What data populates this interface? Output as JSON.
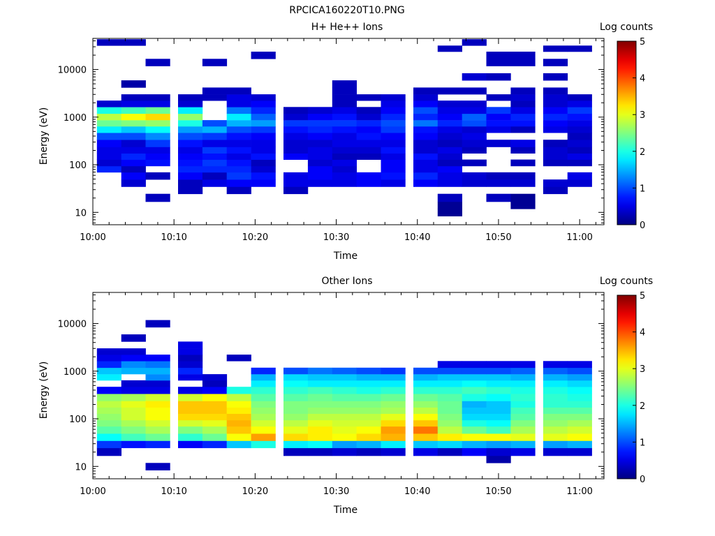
{
  "figure": {
    "title": "RPCICA160220T10.PNG"
  },
  "chart_data": [
    {
      "type": "heatmap",
      "title": "H+ He++ Ions",
      "xlabel": "Time",
      "ylabel": "Energy (eV)",
      "y_scale": "log",
      "ylim": [
        5.5,
        45000
      ],
      "xlim": [
        "10:00",
        "11:03"
      ],
      "x_ticks": [
        "10:00",
        "10:10",
        "10:20",
        "10:30",
        "10:40",
        "10:50",
        "11:00"
      ],
      "y_ticks": [
        "10",
        "100",
        "1000",
        "10000"
      ],
      "colorbar": {
        "label": "Log counts",
        "range": [
          0,
          5
        ],
        "ticks": [
          "0",
          "1",
          "2",
          "3",
          "4",
          "5"
        ]
      },
      "x_bins": [
        "10:02",
        "10:05",
        "10:08",
        "10:12",
        "10:15",
        "10:18",
        "10:21",
        "10:25",
        "10:28",
        "10:31",
        "10:34",
        "10:37",
        "10:41",
        "10:44",
        "10:47",
        "10:50",
        "10:53",
        "10:57",
        "11:00"
      ],
      "energy_bins": [
        10,
        14,
        20,
        30,
        40,
        60,
        80,
        110,
        150,
        200,
        280,
        400,
        550,
        750,
        1000,
        1400,
        1900,
        2600,
        3500,
        5000,
        7000,
        10000,
        14000,
        20000,
        28000,
        36000
      ],
      "values": [
        [
          0,
          0,
          0,
          0,
          0,
          0,
          0.8,
          0.4,
          0.5,
          0.5,
          0.6,
          1.0,
          1.8,
          2.4,
          2.8,
          2.0,
          0.4,
          0,
          0,
          0,
          0,
          0,
          0,
          0,
          0,
          0.3
        ],
        [
          0,
          0,
          0,
          0,
          0.4,
          0.6,
          0.3,
          0.6,
          0.8,
          0.5,
          0.4,
          1.0,
          1.6,
          2.5,
          3.1,
          2.2,
          0.5,
          0.3,
          0,
          0.2,
          0,
          0,
          0,
          0,
          0,
          0.3
        ],
        [
          0,
          0,
          0.3,
          0,
          0,
          0.3,
          0,
          0.7,
          0.6,
          0.5,
          0.9,
          1.3,
          1.9,
          2.6,
          3.3,
          2.4,
          0.5,
          0.3,
          0,
          0,
          0,
          0,
          0.3,
          0,
          0,
          0
        ],
        [
          0,
          0,
          0,
          0.3,
          0.3,
          0.6,
          0.8,
          0.7,
          0.6,
          0.5,
          0.7,
          1.0,
          1.4,
          2.0,
          2.6,
          1.8,
          0.4,
          0.3,
          0,
          0,
          0,
          0,
          0,
          0,
          0,
          0
        ],
        [
          0,
          0,
          0,
          0,
          0.5,
          0.3,
          0.8,
          0.9,
          0.7,
          0.9,
          0.5,
          0.9,
          1.5,
          1.0,
          0,
          0,
          0,
          0.3,
          0.3,
          0,
          0,
          0,
          0.3,
          0,
          0,
          0
        ],
        [
          0,
          0,
          0,
          0.3,
          0.6,
          0.9,
          0.8,
          0.7,
          0.5,
          0.7,
          0.5,
          0.7,
          1.0,
          1.5,
          1.8,
          1.2,
          0.5,
          0.5,
          0.3,
          0,
          0,
          0,
          0,
          0,
          0,
          0
        ],
        [
          0,
          0,
          0,
          0,
          0.6,
          0.7,
          0.4,
          0.3,
          0.7,
          0.5,
          0.5,
          0.6,
          0.9,
          1.4,
          1.1,
          0.8,
          0.6,
          0.4,
          0,
          0,
          0,
          0,
          0,
          0.3,
          0,
          0
        ],
        [
          0,
          0,
          0,
          0.3,
          0.5,
          0.5,
          0,
          0,
          0.6,
          0.4,
          0.4,
          0.5,
          0.7,
          0.9,
          0.4,
          0.3,
          0,
          0,
          0,
          0,
          0,
          0,
          0,
          0,
          0,
          0
        ],
        [
          0,
          0,
          0,
          0,
          0.5,
          0.6,
          0.6,
          0.4,
          0.5,
          0.5,
          0.4,
          0.6,
          0.8,
          0.9,
          0.6,
          0.4,
          0,
          0,
          0,
          0,
          0,
          0,
          0,
          0,
          0,
          0
        ],
        [
          0,
          0,
          0,
          0,
          0.5,
          0.5,
          0.4,
          0.5,
          0.3,
          0.4,
          0.5,
          0.5,
          0.7,
          0.9,
          0.7,
          0.5,
          0.3,
          0.3,
          0.3,
          0.3,
          0,
          0,
          0,
          0,
          0,
          0
        ],
        [
          0,
          0,
          0,
          0,
          0.6,
          0.6,
          0,
          0,
          0.3,
          0.4,
          0.5,
          0.7,
          0.6,
          0.8,
          0.4,
          0.3,
          0,
          0.3,
          0,
          0,
          0,
          0,
          0,
          0,
          0,
          0
        ],
        [
          0,
          0,
          0,
          0,
          0.5,
          0.7,
          0.6,
          0.6,
          0.5,
          0.7,
          0.5,
          0.6,
          0.9,
          1.0,
          0.8,
          0.6,
          0.5,
          0.4,
          0,
          0,
          0,
          0,
          0,
          0,
          0,
          0
        ],
        [
          0,
          0,
          0,
          0,
          0.6,
          0.8,
          0.5,
          0.5,
          0.7,
          0.4,
          0.4,
          0.6,
          0.7,
          1.2,
          0.8,
          1.0,
          0.6,
          0.4,
          0.3,
          0,
          0,
          0,
          0,
          0,
          0,
          0
        ],
        [
          0.1,
          0.1,
          0.3,
          0,
          0.5,
          0.5,
          0.6,
          0.3,
          0.4,
          0.5,
          0.3,
          0.4,
          0.5,
          0.8,
          0.6,
          0.5,
          0.4,
          0,
          0.3,
          0,
          0,
          0,
          0,
          0,
          0.3,
          0
        ],
        [
          0,
          0,
          0,
          0,
          0.4,
          0.4,
          0,
          0.3,
          0,
          0.3,
          0.4,
          0.5,
          0.4,
          1.0,
          1.1,
          0.5,
          0.4,
          0,
          0.3,
          0,
          0.4,
          0,
          0,
          0,
          0,
          0.3
        ],
        [
          0,
          0,
          0.3,
          0,
          0.4,
          0.3,
          0,
          0,
          0,
          0,
          0.4,
          0,
          0.5,
          0.7,
          0.6,
          0.9,
          0,
          0.3,
          0,
          0,
          0.3,
          0,
          0.3,
          0.3,
          0,
          0
        ],
        [
          0,
          0.1,
          0.1,
          0,
          0.4,
          0.3,
          0,
          0.3,
          0,
          0.3,
          0.5,
          0,
          0.3,
          0.7,
          0.8,
          0.5,
          0.3,
          0.4,
          0.3,
          0,
          0,
          0,
          0.3,
          0.3,
          0,
          0
        ],
        [
          0,
          0,
          0,
          0.3,
          0.4,
          0,
          0,
          0.3,
          0.4,
          0.4,
          0.3,
          0,
          0.5,
          0.6,
          0.8,
          0.6,
          0.4,
          0.4,
          0.3,
          0,
          0.3,
          0,
          0.3,
          0,
          0.3,
          0
        ],
        [
          0,
          0,
          0,
          0,
          0.4,
          0.5,
          0,
          0.3,
          0.5,
          0.3,
          0.4,
          0.3,
          0.4,
          0.5,
          0.7,
          0.9,
          0.5,
          0.3,
          0,
          0,
          0,
          0,
          0,
          0,
          0.3,
          0
        ]
      ]
    },
    {
      "type": "heatmap",
      "title": "Other Ions",
      "xlabel": "Time",
      "ylabel": "Energy (eV)",
      "y_scale": "log",
      "ylim": [
        5.5,
        45000
      ],
      "xlim": [
        "10:00",
        "11:03"
      ],
      "x_ticks": [
        "10:00",
        "10:10",
        "10:20",
        "10:30",
        "10:40",
        "10:50",
        "11:00"
      ],
      "y_ticks": [
        "10",
        "100",
        "1000",
        "10000"
      ],
      "colorbar": {
        "label": "Log counts",
        "range": [
          0,
          5
        ],
        "ticks": [
          "0",
          "1",
          "2",
          "3",
          "4",
          "5"
        ]
      },
      "x_bins": [
        "10:02",
        "10:05",
        "10:08",
        "10:12",
        "10:15",
        "10:18",
        "10:21",
        "10:25",
        "10:28",
        "10:31",
        "10:34",
        "10:37",
        "10:41",
        "10:44",
        "10:47",
        "10:50",
        "10:53",
        "10:57",
        "11:00"
      ],
      "energy_bins": [
        10,
        14,
        20,
        30,
        40,
        60,
        80,
        110,
        150,
        200,
        280,
        400,
        550,
        750,
        1000,
        1400,
        1900,
        2600,
        3500,
        5000,
        7000,
        10000,
        14000,
        20000,
        28000,
        36000
      ],
      "values": [
        [
          0,
          0,
          0.3,
          0.9,
          1.9,
          2.3,
          2.5,
          2.6,
          2.7,
          2.8,
          2.6,
          0.6,
          0,
          1.8,
          1.6,
          0.8,
          0.5,
          0.4,
          0,
          0,
          0,
          0,
          0,
          0,
          0,
          0
        ],
        [
          0,
          0,
          0,
          0.7,
          2.2,
          2.5,
          2.7,
          2.9,
          2.9,
          3.0,
          2.7,
          0.5,
          0.4,
          0,
          1.5,
          1.3,
          0.6,
          0.4,
          0,
          0.3,
          0,
          0,
          0,
          0,
          0,
          0
        ],
        [
          0.3,
          0,
          0,
          0.8,
          2.4,
          2.7,
          2.9,
          3.1,
          3.1,
          3.2,
          2.9,
          0.5,
          0.4,
          1.3,
          1.5,
          1.2,
          0.6,
          0,
          0,
          0,
          0,
          0.3,
          0,
          0,
          0,
          0
        ],
        [
          0,
          0,
          0,
          0.6,
          2.1,
          2.5,
          2.9,
          3.3,
          3.4,
          3.4,
          2.9,
          0.5,
          0,
          0.5,
          0.8,
          0.4,
          0.3,
          0.5,
          0.5,
          0,
          0,
          0,
          0,
          0,
          0,
          0
        ],
        [
          0,
          0,
          0,
          0.8,
          2.4,
          2.7,
          3.0,
          3.3,
          3.4,
          3.4,
          3.1,
          0.6,
          0.3,
          0.4,
          0,
          0,
          0,
          0,
          0,
          0,
          0,
          0,
          0,
          0,
          0,
          0
        ],
        [
          0,
          0,
          0,
          1.6,
          3.1,
          3.4,
          3.5,
          3.4,
          3.2,
          3.1,
          2.8,
          2.0,
          0,
          0,
          0,
          0,
          0.3,
          0,
          0,
          0,
          0,
          0,
          0,
          0,
          0,
          0
        ],
        [
          0,
          0,
          0,
          2.0,
          3.6,
          3.1,
          2.9,
          2.7,
          2.6,
          2.5,
          2.3,
          2.1,
          1.8,
          1.5,
          0.8,
          0,
          0,
          0,
          0,
          0,
          0,
          0,
          0,
          0,
          0,
          0
        ],
        [
          0,
          0,
          0.3,
          1.8,
          3.3,
          3.0,
          2.8,
          2.6,
          2.5,
          2.5,
          2.3,
          2.1,
          1.9,
          1.7,
          1.0,
          0,
          0,
          0,
          0,
          0,
          0,
          0,
          0,
          0,
          0,
          0
        ],
        [
          0,
          0,
          0.3,
          1.9,
          3.2,
          3.2,
          3.0,
          2.8,
          2.6,
          2.5,
          2.4,
          2.2,
          1.8,
          1.6,
          1.2,
          0,
          0,
          0,
          0,
          0,
          0,
          0,
          0,
          0,
          0,
          0
        ],
        [
          0,
          0,
          0.4,
          1.4,
          3.1,
          3.0,
          2.9,
          2.8,
          2.6,
          2.5,
          2.3,
          2.1,
          1.8,
          1.6,
          1.1,
          0,
          0,
          0,
          0,
          0,
          0,
          0,
          0,
          0,
          0,
          0
        ],
        [
          0,
          0,
          0.3,
          1.5,
          3.3,
          3.1,
          2.9,
          2.8,
          2.6,
          2.5,
          2.3,
          2.0,
          1.8,
          1.5,
          1.0,
          0,
          0,
          0,
          0,
          0,
          0,
          0,
          0,
          0,
          0,
          0
        ],
        [
          0,
          0,
          0.4,
          1.8,
          3.5,
          3.6,
          3.3,
          3.0,
          2.7,
          2.6,
          2.4,
          2.1,
          1.8,
          1.5,
          0.9,
          0,
          0,
          0,
          0,
          0,
          0,
          0,
          0,
          0,
          0,
          0
        ],
        [
          0,
          0,
          0.5,
          1.6,
          3.4,
          3.8,
          3.4,
          3.1,
          2.8,
          2.6,
          2.4,
          2.1,
          1.8,
          1.5,
          1.0,
          0,
          0,
          0,
          0,
          0,
          0,
          0,
          0,
          0,
          0,
          0
        ],
        [
          0,
          0,
          0.3,
          1.7,
          3.2,
          2.8,
          2.6,
          2.5,
          2.4,
          2.4,
          2.3,
          2.1,
          1.8,
          1.6,
          1.0,
          0.5,
          0,
          0,
          0,
          0,
          0,
          0,
          0,
          0,
          0,
          0
        ],
        [
          0,
          0,
          0.6,
          1.5,
          3.1,
          2.4,
          2.0,
          1.7,
          1.6,
          1.5,
          2.0,
          2.2,
          1.9,
          1.6,
          1.0,
          0.5,
          0,
          0,
          0,
          0,
          0,
          0,
          0,
          0,
          0,
          0
        ],
        [
          0,
          0.2,
          0.4,
          1.4,
          3.1,
          2.2,
          1.9,
          1.7,
          1.6,
          1.6,
          1.9,
          2.1,
          1.8,
          1.6,
          1.0,
          0.5,
          0,
          0,
          0,
          0,
          0,
          0,
          0,
          0,
          0,
          0
        ],
        [
          0,
          0,
          0.5,
          1.5,
          3.0,
          2.7,
          2.5,
          2.3,
          2.2,
          2.0,
          2.1,
          2.0,
          1.8,
          1.5,
          1.1,
          0.5,
          0,
          0,
          0,
          0,
          0,
          0,
          0,
          0,
          0,
          0
        ],
        [
          0,
          0,
          0.4,
          1.4,
          3.0,
          2.8,
          2.6,
          2.5,
          2.3,
          2.1,
          2.1,
          2.0,
          1.8,
          1.5,
          1.1,
          0.5,
          0,
          0,
          0,
          0,
          0,
          0,
          0,
          0,
          0,
          0
        ],
        [
          0,
          0,
          0.4,
          1.5,
          3.1,
          2.9,
          2.7,
          2.5,
          2.3,
          2.1,
          2.0,
          1.9,
          1.7,
          1.4,
          1.0,
          0.5,
          0,
          0,
          0,
          0,
          0,
          0,
          0,
          0,
          0,
          0
        ]
      ]
    }
  ]
}
